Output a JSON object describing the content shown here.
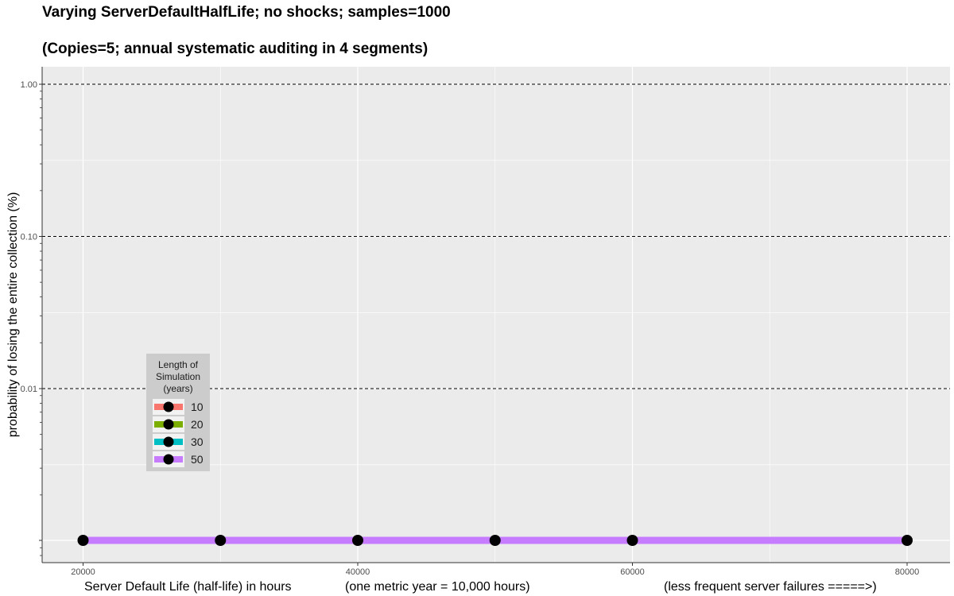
{
  "chart_data": {
    "type": "line",
    "title": "Varying ServerDefaultHalfLife; no shocks; samples=1000",
    "subtitle": "(Copies=5; annual systematic auditing in 4 segments)",
    "xlabel": "Server Default Life (half-life) in hours",
    "xlabel_note_1": "(one metric year = 10,000 hours)",
    "xlabel_note_2": "(less frequent server failures =====>)",
    "ylabel": "probability of losing the entire collection (%)",
    "y_scale": "log",
    "x_ticks": [
      "20000",
      "40000",
      "60000",
      "80000"
    ],
    "y_ticks": [
      "1.00",
      "0.10",
      "0.01"
    ],
    "x": [
      20000,
      30000,
      40000,
      50000,
      60000,
      80000
    ],
    "series": [
      {
        "name": "10",
        "color": "#F8766D",
        "values": [
          0,
          0,
          0,
          0,
          0,
          0
        ]
      },
      {
        "name": "20",
        "color": "#7CAE00",
        "values": [
          0,
          0,
          0,
          0,
          0,
          0
        ]
      },
      {
        "name": "30",
        "color": "#00BFC4",
        "values": [
          0,
          0,
          0,
          0,
          0,
          0
        ]
      },
      {
        "name": "50",
        "color": "#C77CFF",
        "values": [
          0,
          0,
          0,
          0,
          0,
          0
        ]
      }
    ],
    "legend": {
      "title_lines": [
        "Length of",
        "Simulation",
        "(years)"
      ],
      "position": "bottom-left"
    },
    "reference_lines": [
      1.0,
      0.1,
      0.01
    ]
  }
}
